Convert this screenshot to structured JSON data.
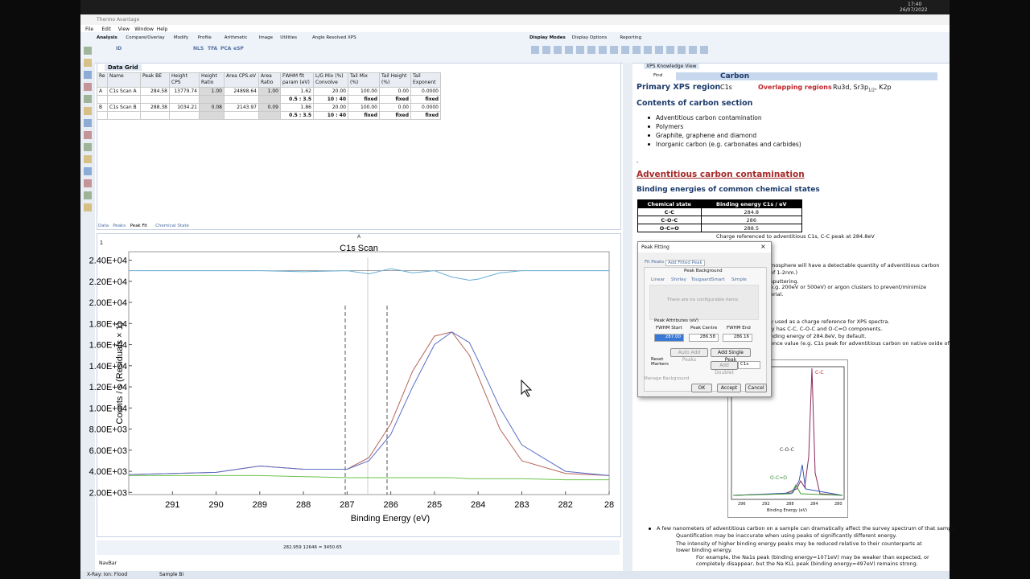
{
  "system": {
    "time": "17:40",
    "date": "26/07/2022"
  },
  "app": {
    "title": "Thermo Avantage",
    "menu": [
      "File",
      "Edit",
      "View",
      "Window",
      "Help"
    ],
    "tabs_left": [
      "Analysis",
      "Compare/Overlay",
      "Modify",
      "Profile",
      "Arithmetic",
      "Image",
      "Utilities",
      "Angle Resolved XPS"
    ],
    "tabs_right": [
      "Display Modes",
      "Display Options",
      "Reporting"
    ],
    "tool_labels": [
      "ID",
      "NLS",
      "TFA",
      "PCA",
      "eSP"
    ]
  },
  "data_grid": {
    "tab": "Data Grid",
    "headers": [
      "Re",
      "Name",
      "Peak BE",
      "Height CPS",
      "Height Ratio",
      "Area CPS.eV",
      "Area Ratio",
      "FWHM fit param (eV)",
      "L/G Mix (%) Convolve",
      "Tail Mix (%)",
      "Tail Height (%)",
      "Tail Exponent"
    ],
    "rows": [
      [
        "A",
        "C1s Scan A",
        "284.58",
        "13779.74",
        "1.00",
        "24898.64",
        "1.00",
        "1.62",
        "20.00",
        "100.00",
        "0.00",
        "0.0000"
      ],
      [
        null,
        null,
        null,
        null,
        null,
        null,
        null,
        "0.5 : 3.5",
        "10 : 40",
        "fixed",
        "fixed",
        "fixed"
      ],
      [
        "B",
        "C1s Scan B",
        "288.38",
        "1034.21",
        "0.08",
        "2143.97",
        "0.09",
        "1.86",
        "20.00",
        "100.00",
        "0.00",
        "0.0000"
      ],
      [
        null,
        null,
        null,
        null,
        null,
        null,
        null,
        "0.5 : 3.5",
        "10 : 40",
        "fixed",
        "fixed",
        "fixed"
      ]
    ],
    "bottom_tabs": [
      "Data",
      "Peaks",
      "Peak Fit",
      "Chemical State"
    ]
  },
  "chart": {
    "type": "line",
    "panel": "1",
    "marker": "A",
    "title": "C1s Scan",
    "y_label": "Counts / s  (Residuals × 1)",
    "x_label": "Binding Energy (eV)",
    "xlim": [
      292,
      281
    ],
    "ylim": [
      1800,
      24800
    ],
    "xticks": [
      291,
      290,
      289,
      288,
      287,
      286,
      285,
      284,
      283,
      282,
      {
        "value": 281,
        "label": "28"
      }
    ],
    "yticks": [
      {
        "value": 2000,
        "label": "2.00E+03"
      },
      {
        "value": 4000,
        "label": "4.00E+03"
      },
      {
        "value": 6000,
        "label": "6.00E+03"
      },
      {
        "value": 8000,
        "label": "8.00E+03"
      },
      {
        "value": 10000,
        "label": "1.00E+04"
      },
      {
        "value": 12000,
        "label": "1.20E+04"
      },
      {
        "value": 14000,
        "label": "1.40E+04"
      },
      {
        "value": 16000,
        "label": "1.60E+04"
      },
      {
        "value": 18000,
        "label": "1.80E+04"
      },
      {
        "value": 20000,
        "label": "2.00E+04"
      },
      {
        "value": 22000,
        "label": "2.20E+04"
      },
      {
        "value": 24000,
        "label": "2.40E+04"
      }
    ],
    "x": [
      292,
      290,
      289,
      288,
      287,
      286.5,
      286,
      285.5,
      285,
      284.6,
      284.2,
      284,
      283.5,
      283,
      282,
      281
    ],
    "series": [
      {
        "color": "#b5655a",
        "values": [
          3700,
          3900,
          4500,
          4200,
          4200,
          5300,
          8500,
          13500,
          16800,
          17200,
          15000,
          13000,
          8000,
          5000,
          3800,
          3600
        ]
      },
      {
        "color": "#5a6fc9",
        "values": [
          3700,
          3900,
          4500,
          4200,
          4200,
          5000,
          7500,
          12000,
          16000,
          17200,
          16200,
          14500,
          10000,
          6500,
          4000,
          3600
        ]
      },
      {
        "color": "#6cc24a",
        "values": [
          3600,
          3600,
          3600,
          3500,
          3400,
          3400,
          3400,
          3400,
          3400,
          3400,
          3300,
          3300,
          3300,
          3300,
          3200,
          3200
        ]
      },
      {
        "color": "#6aaed6",
        "values": [
          23000,
          23000,
          23000,
          22900,
          23000,
          22700,
          23200,
          22800,
          23000,
          22400,
          22100,
          22200,
          22800,
          23000,
          23000,
          23000
        ]
      }
    ]
  },
  "status": {
    "cursor": "282.959  12646  = 3450.65",
    "navbar": "NavBar",
    "source": "X-Ray:  Ion:  Flood",
    "sample": "Sample Bi"
  },
  "knowledge": {
    "tab": "XPS Knowledge View",
    "find": "Find",
    "header": "Carbon",
    "primary_label": "Primary XPS region",
    "primary_value": "C1s",
    "overlap_label": "Overlapping regions",
    "overlap_value": [
      "Ru3d, Sr3p",
      "1/2",
      ", K2p"
    ],
    "contents_title": "Contents of carbon section",
    "contents": [
      "Adventitious carbon contamination",
      "Polymers",
      "Graphite, graphene and diamond",
      "Inorganic carbon (e.g. carbonates and carbides)"
    ],
    "dash": "-",
    "section_title": "Adventitious carbon contamination",
    "be_title": "Binding energies of common chemical states",
    "be_table": {
      "headers": [
        "Chemical state",
        "Binding energy C1s / eV"
      ],
      "rows": [
        [
          "C-C",
          "284.8"
        ],
        [
          "C-O-C",
          "286"
        ],
        [
          "O-C=O",
          "288.5"
        ]
      ]
    },
    "be_note": "Charge referenced to adventitious C1s, C-C peak at 284.8eV",
    "hidden_fragments": [
      "mosphere will have a detectable quantity of adventitious carbon",
      "of 1-2nm.)",
      "sputtering.",
      "e.g. 200eV or 500eV) or argon clusters to prevent/minimize",
      "erial.",
      "y used as a charge reference for XPS spectra.",
      "ly has C-C, C-O-C and O-C=O components.",
      "nding energy of 284.8eV, by default.",
      "ence value (e.g. C1s peak for adventitious carbon on native oxide of",
      "bon"
    ],
    "inset": {
      "labels": [
        "C-C",
        "C-O-C",
        "O-C=O"
      ],
      "x_label": "Binding Energy (eV)",
      "xticks": [
        "296",
        "292",
        "288",
        "284",
        "280"
      ]
    },
    "bullet": "A few nanometers of adventitious carbon on a sample can dramatically affect the survey spectrum of that sample.",
    "sub_bullets": [
      "Quantification may be inaccurate when using peaks of significantly different energy.",
      "The intensity of higher binding energy peaks may be reduced relative to their counterparts at lower binding energy."
    ],
    "sub_sub_bullet": "For example, the Na1s peak (binding energy=1071eV) may be weaker than expected, or completely disappear, but the Na KLL peak (binding energy=497eV) remains strong."
  },
  "dialog": {
    "title": "Peak Fitting",
    "tabs": [
      "Fit Peaks",
      "Add Fitted Peak"
    ],
    "background_title": "Peak Background",
    "background_tabs": [
      "Linear",
      "Shirley",
      "Tougaard",
      "Smart",
      "Simple"
    ],
    "message": "There are no configurable items",
    "attributes_title": "Peak Attributes (eV)",
    "fields": [
      "FWHM Start",
      "Peak Centre",
      "FWHM End"
    ],
    "field_values": [
      "287.00",
      "286.58",
      "286.16"
    ],
    "reset": "Reset Markers",
    "auto_add": "Auto Add Peaks",
    "add_single": "Add Single Peak",
    "add_doublet": "Add Doublet",
    "peak_name": "C1s",
    "manage": "Manage Background",
    "ok": "OK",
    "accept": "Accept",
    "cancel": "Cancel"
  }
}
